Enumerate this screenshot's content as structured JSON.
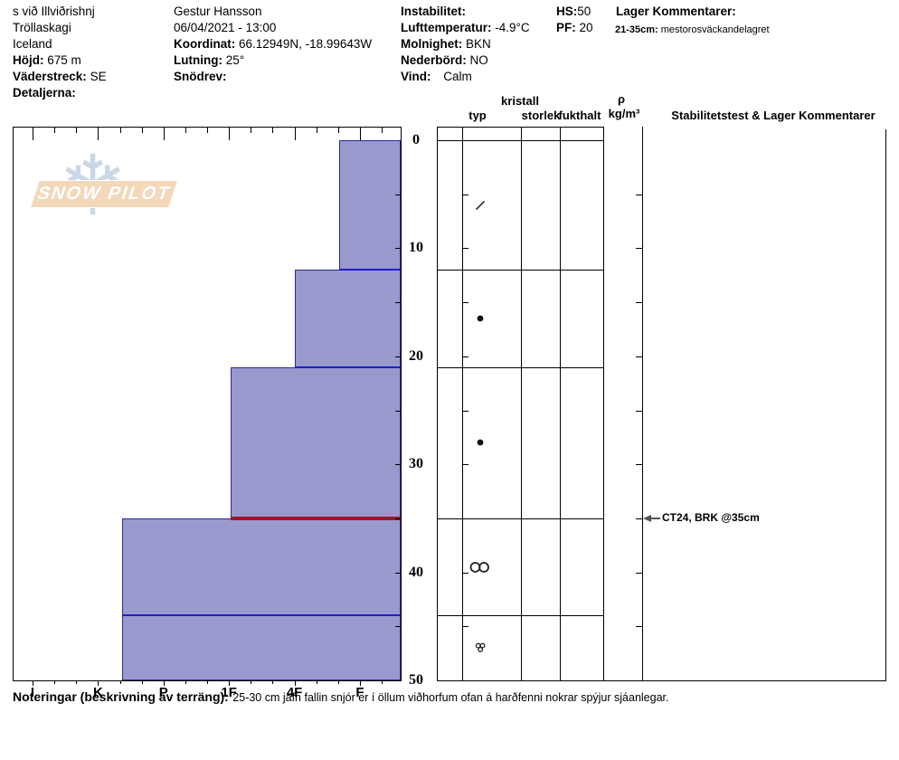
{
  "header": {
    "location": {
      "line1": "s við Illviðrishnj",
      "line2": "Tröllaskagi",
      "line3": "Iceland",
      "hojd_label": "Höjd:",
      "hojd_value": "675 m",
      "vaderstreck_label": "Väderstreck:",
      "vaderstreck_value": "SE",
      "detaljerna_label": "Detaljerna:"
    },
    "observer": {
      "name": "Gestur Hansson",
      "datetime": "06/04/2021 - 13:00",
      "koordinat_label": "Koordinat:",
      "koordinat_value": "66.12949N, -18.99643W",
      "lutning_label": "Lutning:",
      "lutning_value": "25°",
      "snodrev_label": "Snödrev:"
    },
    "conditions": {
      "instabilitet_label": "Instabilitet:",
      "lufttemperatur_label": "Lufttemperatur:",
      "lufttemperatur_value": "-4.9°C",
      "molnighet_label": "Molnighet:",
      "molnighet_value": "BKN",
      "nederbord_label": "Nederbörd:",
      "nederbord_value": "NO",
      "vind_label": "Vind:",
      "vind_value": "Calm"
    },
    "totals": {
      "hs_label": "HS:",
      "hs_value": "50",
      "pf_label": "PF:",
      "pf_value": "20"
    },
    "lager": {
      "title": "Lager Kommentarer:",
      "entry_label": "21-35cm:",
      "entry_value": "mestorosväckandelagret"
    }
  },
  "logo": {
    "text": "SNOW PILOT",
    "snowflake_glyph": "❄"
  },
  "columns": {
    "kristall": "kristall",
    "typ": "typ",
    "storlek": "storlek",
    "fukthalt": "fukthalt",
    "rho": "ρ",
    "rho_units": "kg/m³",
    "stability": "Stabilitetstest & Lager Kommentarer"
  },
  "notes": {
    "label": "Noteringar (beskrivning av terräng):",
    "text": "25-30 cm jafn fallin snjór er í öllum viðhorfum ofan á harðfenni nokrar spýjur sjáanlegar."
  },
  "chart_data": {
    "type": "bar",
    "subtype": "snow-hardness-profile",
    "depth_axis": {
      "unit": "cm",
      "range": [
        0,
        50
      ],
      "major_ticks": [
        0,
        10,
        20,
        30,
        40,
        50
      ],
      "minor_interval": 5,
      "labels_side": "right"
    },
    "hardness_axis": {
      "categories": [
        "I",
        "K",
        "P",
        "1F",
        "4F",
        "F"
      ],
      "minor_divisions_per_interval": 3,
      "direction": "hard-left-to-soft-right"
    },
    "layers": [
      {
        "top_cm": 0,
        "bottom_cm": 12,
        "hardness": "F-",
        "hardness_index": 4.68,
        "grain_type": "DF",
        "grain_symbol": "slash"
      },
      {
        "top_cm": 12,
        "bottom_cm": 21,
        "hardness": "4F",
        "hardness_index": 4.0,
        "grain_type": "RG",
        "grain_symbol": "dot"
      },
      {
        "top_cm": 21,
        "bottom_cm": 35,
        "hardness": "1F",
        "hardness_index": 3.02,
        "grain_type": "RG",
        "grain_symbol": "dot"
      },
      {
        "top_cm": 35,
        "bottom_cm": 44,
        "hardness": "K-P",
        "hardness_index": 1.37,
        "grain_type": "MF",
        "grain_symbol": "double-circle"
      },
      {
        "top_cm": 44,
        "bottom_cm": 50,
        "hardness": "K-P",
        "hardness_index": 1.37,
        "grain_type": "MF-cluster",
        "grain_symbol": "circle-cluster"
      }
    ],
    "layer_boundaries": [
      {
        "depth_cm": 12,
        "color": "#1d1dcc"
      },
      {
        "depth_cm": 21,
        "color": "#1d1dcc"
      },
      {
        "depth_cm": 35,
        "color": "#a3122b"
      },
      {
        "depth_cm": 44,
        "color": "#1d1dcc"
      }
    ],
    "colors": {
      "bar_fill": "#9a99ce",
      "bar_outline": "#2a2a96",
      "grid": "#000000"
    },
    "stability_annotation": {
      "depth_cm": 35,
      "text": "CT24, BRK @35cm"
    }
  }
}
